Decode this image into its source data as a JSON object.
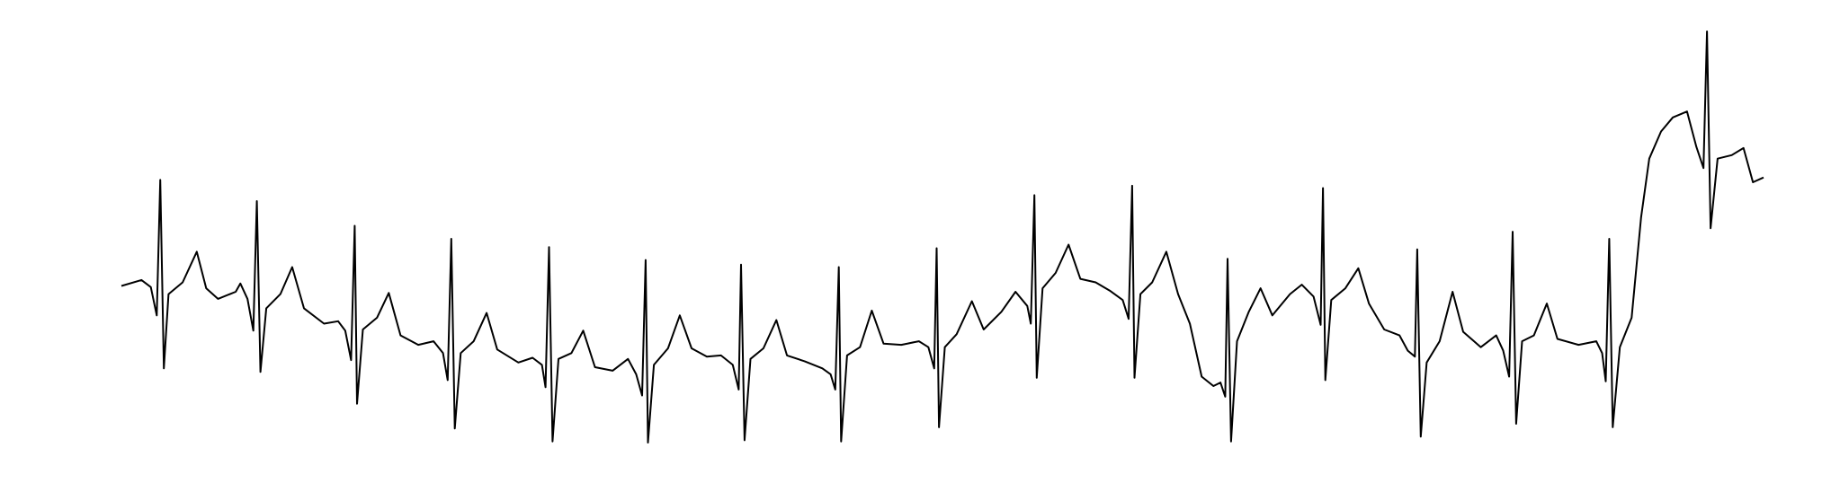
{
  "chart_data": {
    "type": "line",
    "color": "#000000",
    "x": [
      103,
      120,
      128,
      133,
      136,
      139,
      143,
      155,
      167,
      175,
      185,
      200,
      204,
      210,
      215,
      218,
      221,
      226,
      238,
      248,
      258,
      275,
      287,
      293,
      298,
      301,
      303,
      308,
      320,
      330,
      340,
      355,
      368,
      376,
      380,
      383,
      386,
      391,
      402,
      413,
      422,
      440,
      452,
      460,
      463,
      466,
      469,
      474,
      485,
      495,
      505,
      520,
      533,
      540,
      545,
      548,
      550,
      555,
      567,
      577,
      587,
      600,
      612,
      622,
      627,
      629,
      632,
      637,
      648,
      659,
      668,
      683,
      698,
      705,
      709,
      712,
      714,
      719,
      730,
      740,
      750,
      765,
      780,
      788,
      793,
      795,
      797,
      802,
      812,
      825,
      835,
      850,
      862,
      872,
      875,
      878,
      880,
      885,
      896,
      907,
      917,
      930,
      942,
      953,
      958,
      961,
      963,
      968,
      978,
      990,
      1000,
      1010,
      1020,
      1030,
      1036,
      1040,
      1042,
      1045,
      1050,
      1060,
      1070,
      1080,
      1095,
      1105,
      1115,
      1121,
      1123,
      1125,
      1130,
      1142,
      1153,
      1162,
      1175,
      1188,
      1195,
      1201,
      1203,
      1206,
      1211,
      1222,
      1233,
      1242,
      1257,
      1270,
      1276,
      1281,
      1284,
      1287,
      1292,
      1302,
      1313,
      1322,
      1340,
      1355,
      1360,
      1363,
      1366,
      1369,
      1375,
      1385,
      1393,
      1400,
      1410,
      1420,
      1432,
      1440,
      1446,
      1449,
      1452,
      1458,
      1470,
      1480,
      1488,
      1497
    ],
    "values": [
      157,
      162,
      156,
      132,
      247,
      87,
      150,
      160,
      186,
      155,
      146,
      152,
      159,
      146,
      119,
      229,
      84,
      138,
      150,
      173,
      138,
      125,
      127,
      119,
      94,
      208,
      57,
      120,
      130,
      151,
      115,
      107,
      110,
      100,
      77,
      197,
      36,
      100,
      110,
      134,
      103,
      92,
      96,
      90,
      71,
      190,
      25,
      95,
      100,
      119,
      88,
      85,
      95,
      82,
      64,
      179,
      24,
      90,
      104,
      132,
      104,
      97,
      98,
      90,
      69,
      175,
      26,
      95,
      104,
      128,
      98,
      93,
      87,
      82,
      69,
      173,
      25,
      98,
      105,
      136,
      108,
      107,
      110,
      105,
      87,
      189,
      37,
      105,
      116,
      144,
      120,
      135,
      152,
      140,
      125,
      234,
      79,
      155,
      168,
      192,
      163,
      160,
      153,
      145,
      129,
      242,
      79,
      150,
      160,
      186,
      150,
      125,
      80,
      72,
      75,
      63,
      180,
      25,
      110,
      135,
      155,
      132,
      150,
      158,
      148,
      124,
      240,
      77,
      145,
      155,
      172,
      142,
      120,
      115,
      102,
      97,
      188,
      29,
      92,
      110,
      152,
      118,
      105,
      115,
      102,
      80,
      203,
      40,
      110,
      115,
      142,
      112,
      107,
      110,
      100,
      76,
      197,
      37,
      105,
      130,
      215,
      265,
      288,
      300,
      305,
      275,
      257,
      373,
      206,
      265,
      268,
      274,
      245,
      249
    ]
  }
}
